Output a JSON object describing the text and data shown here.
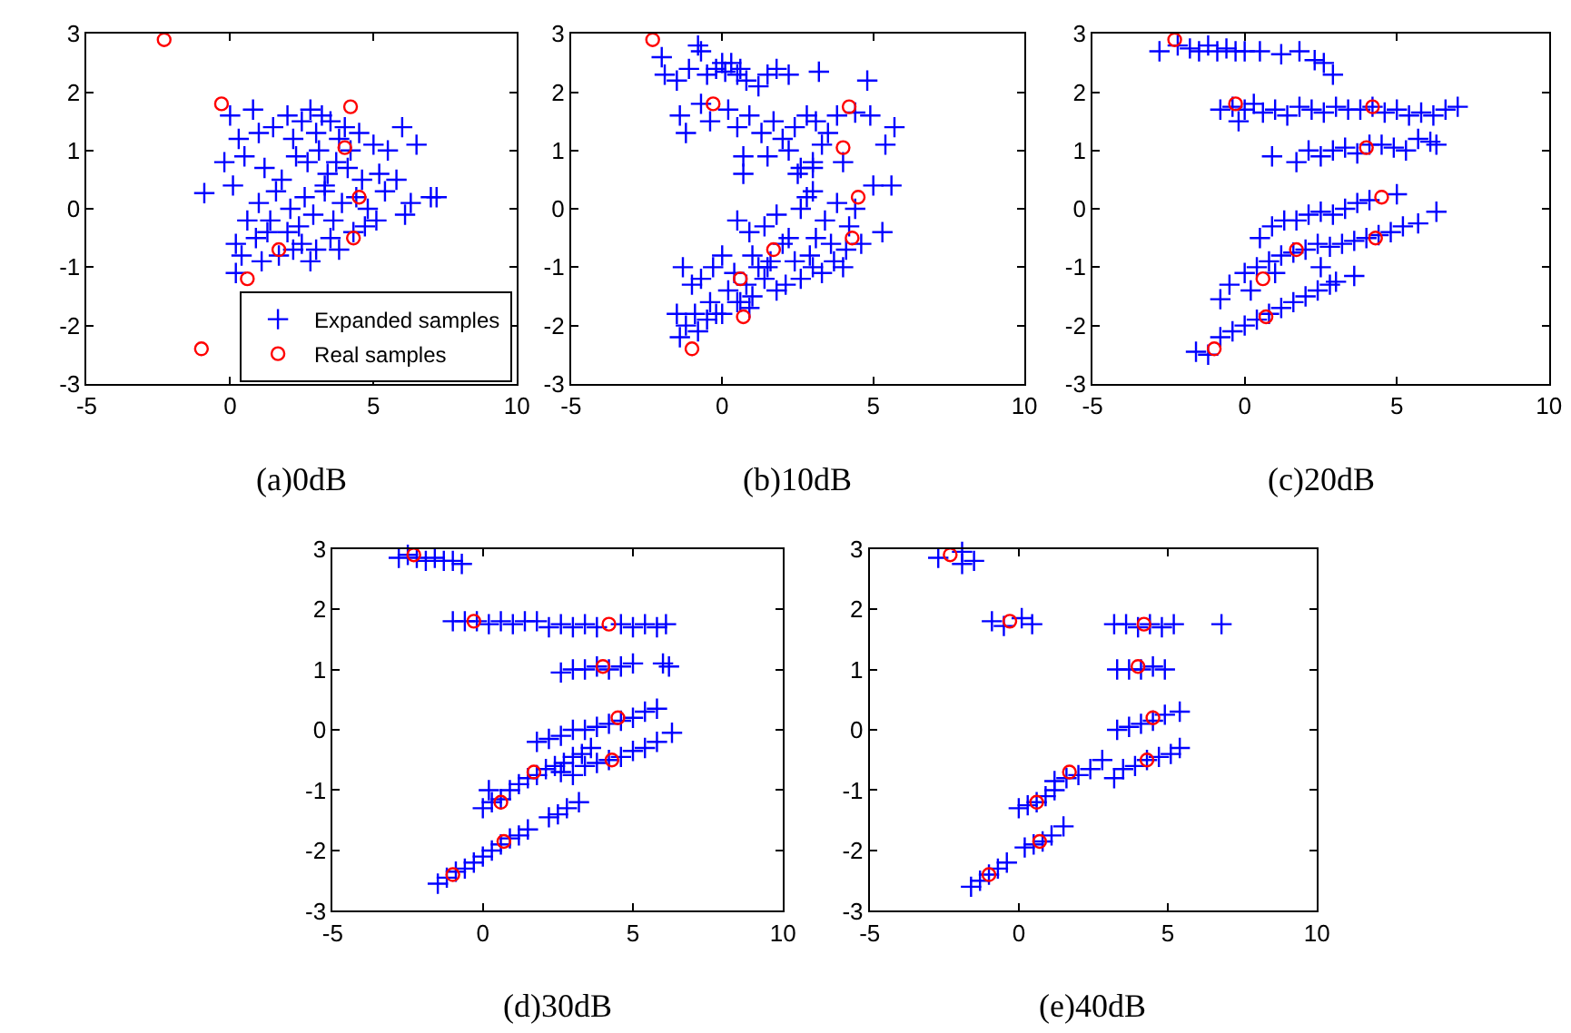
{
  "chart_data": [
    {
      "type": "scatter",
      "title": "(a)0dB",
      "xlim": [
        -5,
        10
      ],
      "ylim": [
        -3,
        3
      ],
      "xticks": [
        -5,
        0,
        5,
        10
      ],
      "yticks": [
        -3,
        -2,
        -1,
        0,
        1,
        2,
        3
      ],
      "legend": "bottom right",
      "series": [
        {
          "name": "Expanded samples",
          "color": "#0000ff",
          "marker": "cross",
          "x": [
            0.0,
            0.3,
            0.8,
            1.0,
            1.5,
            2.0,
            2.2,
            2.5,
            2.8,
            3.0,
            3.2,
            3.5,
            3.8,
            4.0,
            4.2,
            4.5,
            5.0,
            5.5,
            6.0,
            6.5,
            7.0,
            7.2,
            -0.9,
            -0.2,
            0.1,
            0.5,
            1.2,
            1.8,
            2.3,
            2.7,
            3.1,
            3.4,
            3.7,
            4.1,
            4.6,
            5.2,
            5.8,
            6.3,
            0.6,
            1.0,
            1.6,
            2.1,
            2.6,
            3.3,
            3.9,
            4.4,
            4.8,
            5.4,
            6.1,
            0.2,
            0.9,
            1.4,
            2.0,
            2.4,
            2.9,
            3.6,
            4.3,
            1.1,
            1.7,
            2.5,
            3.0,
            3.5,
            0.4,
            1.3,
            2.2,
            2.8,
            3.8,
            4.7,
            5.1,
            3.3,
            0.2
          ],
          "values": [
            1.6,
            1.2,
            1.7,
            1.3,
            1.4,
            1.6,
            1.2,
            1.5,
            1.7,
            1.3,
            1.6,
            1.5,
            1.2,
            1.4,
            1.0,
            1.3,
            1.1,
            1.0,
            1.4,
            1.1,
            0.2,
            0.2,
            0.27,
            0.8,
            0.4,
            0.9,
            0.7,
            0.5,
            0.9,
            0.8,
            1.0,
            0.6,
            0.8,
            0.7,
            0.5,
            0.6,
            0.5,
            0.1,
            -0.2,
            0.1,
            0.3,
            0.0,
            0.2,
            0.3,
            0.1,
            0.2,
            0.0,
            0.3,
            -0.1,
            -0.6,
            -0.5,
            -0.2,
            -0.4,
            -0.3,
            -0.1,
            -0.2,
            -0.4,
            -0.9,
            -0.8,
            -0.6,
            -0.7,
            -0.5,
            -0.8,
            -0.4,
            -0.7,
            -0.9,
            -0.7,
            -0.3,
            -0.2,
            0.4,
            -1.1
          ]
        },
        {
          "name": "Real samples",
          "color": "#ff0000",
          "marker": "circle",
          "x": [
            -2.3,
            -0.3,
            4.2,
            4.0,
            4.5,
            4.3,
            1.7,
            0.6,
            -1.0
          ],
          "values": [
            2.9,
            1.8,
            1.75,
            1.05,
            0.2,
            -0.5,
            -0.7,
            -1.2,
            -2.4
          ]
        }
      ]
    },
    {
      "type": "scatter",
      "title": "(b)10dB",
      "xlim": [
        -5,
        10
      ],
      "ylim": [
        -3,
        3
      ],
      "xticks": [
        -5,
        0,
        5,
        10
      ],
      "yticks": [
        -3,
        -2,
        -1,
        0,
        1,
        2,
        3
      ],
      "series": [
        {
          "color": "#0000ff",
          "marker": "cross",
          "x": [
            -2.0,
            -1.9,
            -1.5,
            -1.1,
            -0.8,
            -0.5,
            -0.2,
            0.0,
            0.3,
            0.5,
            0.8,
            1.2,
            1.5,
            1.8,
            2.2,
            3.2,
            4.8,
            -0.7,
            0.1,
            0.6,
            -1.4,
            -1.2,
            -0.7,
            0.2,
            0.5,
            0.9,
            1.3,
            1.7,
            2.0,
            2.4,
            2.8,
            3.1,
            3.5,
            3.8,
            4.4,
            4.9,
            5.4,
            5.7,
            0.7,
            1.5,
            2.2,
            2.6,
            3.0,
            3.3,
            4.0,
            -0.4,
            0.7,
            2.5,
            3.0,
            0.5,
            0.9,
            1.4,
            1.8,
            2.2,
            2.6,
            3.0,
            3.4,
            3.8,
            4.2,
            4.6,
            5.0,
            5.3,
            5.6,
            2.8,
            3.1,
            3.6,
            4.1,
            4.4,
            1.0,
            1.5,
            2.0,
            2.4,
            2.9,
            3.3,
            3.7,
            4.0,
            0.0,
            0.4,
            0.8,
            1.2,
            1.6,
            2.1,
            2.6,
            3.0,
            -0.3,
            0.2,
            0.6,
            1.0,
            1.4,
            1.8,
            -1.3,
            -1.0,
            -0.7,
            -0.4,
            0.0,
            0.5,
            0.9,
            -1.5,
            -1.2,
            -0.9,
            -0.5,
            -0.2,
            -1.4,
            -0.8
          ],
          "values": [
            2.6,
            2.3,
            2.2,
            2.4,
            2.8,
            2.3,
            2.4,
            2.5,
            2.5,
            2.3,
            2.2,
            2.1,
            2.3,
            2.4,
            2.3,
            2.35,
            2.2,
            2.7,
            2.35,
            2.4,
            1.6,
            1.3,
            1.8,
            1.7,
            1.4,
            1.6,
            1.3,
            1.5,
            1.2,
            1.4,
            1.6,
            1.5,
            1.3,
            1.6,
            1.65,
            1.6,
            1.1,
            1.4,
            0.9,
            0.9,
            1.0,
            0.7,
            0.8,
            1.1,
            0.8,
            1.5,
            0.6,
            0.6,
            0.7,
            -0.2,
            -0.4,
            -0.3,
            -0.1,
            -0.5,
            0.0,
            0.3,
            -0.2,
            0.1,
            -0.3,
            -0.6,
            0.4,
            -0.4,
            0.4,
            0.2,
            -0.5,
            -0.6,
            -0.7,
            0.0,
            -0.8,
            -1.0,
            -0.6,
            -0.9,
            -0.8,
            -1.1,
            -0.9,
            -1.0,
            -0.8,
            -1.1,
            -1.3,
            -1.0,
            -0.9,
            -1.3,
            -1.2,
            -1.0,
            -1.0,
            -1.4,
            -1.6,
            -1.5,
            -1.2,
            -1.4,
            -1.0,
            -1.3,
            -1.2,
            -1.6,
            -1.8,
            -1.6,
            -1.7,
            -1.8,
            -2.0,
            -1.8,
            -1.9,
            -1.8,
            -2.2,
            -2.1
          ]
        },
        {
          "color": "#ff0000",
          "marker": "circle",
          "x": [
            -2.3,
            -0.3,
            4.2,
            4.0,
            4.5,
            4.3,
            1.7,
            0.6,
            0.7,
            -1.0
          ],
          "values": [
            2.9,
            1.8,
            1.75,
            1.05,
            0.2,
            -0.5,
            -0.7,
            -1.2,
            -1.85,
            -2.4
          ]
        }
      ]
    },
    {
      "type": "scatter",
      "title": "(c)20dB",
      "xlim": [
        -5,
        10
      ],
      "ylim": [
        -3,
        3
      ],
      "xticks": [
        -5,
        0,
        5,
        10
      ],
      "yticks": [
        -3,
        -2,
        -1,
        0,
        1,
        2,
        3
      ],
      "series": [
        {
          "color": "#0000ff",
          "marker": "cross",
          "x": [
            -2.8,
            -2.2,
            -1.8,
            -1.5,
            -1.2,
            -0.9,
            -0.6,
            -0.3,
            0.0,
            0.5,
            1.2,
            1.8,
            2.3,
            2.6,
            2.9,
            -0.8,
            -0.4,
            0.0,
            0.3,
            0.6,
            1.0,
            1.4,
            1.8,
            2.2,
            2.6,
            3.0,
            3.4,
            3.8,
            4.2,
            4.6,
            5.0,
            5.4,
            5.8,
            6.2,
            6.6,
            7.0,
            -0.2,
            0.9,
            1.7,
            2.1,
            2.5,
            2.9,
            3.3,
            3.7,
            4.1,
            4.5,
            4.9,
            5.3,
            5.7,
            6.1,
            6.3,
            0.5,
            0.9,
            1.3,
            1.7,
            2.1,
            2.5,
            2.9,
            3.3,
            3.7,
            4.1,
            5.0,
            6.3,
            -0.5,
            0.0,
            0.4,
            0.8,
            1.2,
            1.6,
            2.0,
            2.4,
            2.8,
            3.2,
            3.6,
            4.0,
            4.4,
            4.8,
            5.2,
            5.7,
            -0.8,
            0.2,
            1.0,
            2.5,
            3.6,
            -1.6,
            -1.2,
            -0.8,
            -0.4,
            0.0,
            0.4,
            0.8,
            1.2,
            1.6,
            2.0,
            2.4,
            2.8,
            3.0
          ],
          "values": [
            2.7,
            2.8,
            2.75,
            2.7,
            2.8,
            2.7,
            2.75,
            2.7,
            2.7,
            2.7,
            2.65,
            2.7,
            2.55,
            2.5,
            2.3,
            1.7,
            1.75,
            1.7,
            1.8,
            1.65,
            1.7,
            1.6,
            1.75,
            1.7,
            1.65,
            1.75,
            1.7,
            1.7,
            1.75,
            1.65,
            1.7,
            1.6,
            1.65,
            1.6,
            1.7,
            1.75,
            1.5,
            0.9,
            0.8,
            1.0,
            0.9,
            1.0,
            1.05,
            0.95,
            1.1,
            1.1,
            1.05,
            1.0,
            1.2,
            1.15,
            1.1,
            -0.5,
            -0.3,
            -0.2,
            -0.2,
            -0.1,
            -0.05,
            -0.1,
            0.0,
            0.1,
            0.15,
            0.25,
            -0.05,
            -1.3,
            -1.1,
            -1.0,
            -0.9,
            -0.8,
            -0.75,
            -0.7,
            -0.6,
            -0.65,
            -0.6,
            -0.55,
            -0.5,
            -0.45,
            -0.4,
            -0.3,
            -0.25,
            -1.55,
            -1.4,
            -1.1,
            -1.0,
            -1.15,
            -2.45,
            -2.5,
            -2.2,
            -2.1,
            -2.0,
            -1.9,
            -1.8,
            -1.7,
            -1.6,
            -1.5,
            -1.4,
            -1.3,
            -1.25
          ]
        },
        {
          "color": "#ff0000",
          "marker": "circle",
          "x": [
            -2.3,
            -0.3,
            4.2,
            4.0,
            4.5,
            4.3,
            1.7,
            0.6,
            0.7,
            -1.0
          ],
          "values": [
            2.9,
            1.8,
            1.75,
            1.05,
            0.2,
            -0.5,
            -0.7,
            -1.2,
            -1.85,
            -2.4
          ]
        }
      ]
    },
    {
      "type": "scatter",
      "title": "(d)30dB",
      "xlim": [
        -5,
        10
      ],
      "ylim": [
        -3,
        3
      ],
      "xticks": [
        -5,
        0,
        5,
        10
      ],
      "yticks": [
        -3,
        -2,
        -1,
        0,
        1,
        2,
        3
      ],
      "series": [
        {
          "color": "#0000ff",
          "marker": "cross",
          "x": [
            -2.8,
            -2.5,
            -2.2,
            -1.9,
            -1.6,
            -1.3,
            -1.0,
            -0.7,
            -1.0,
            -0.6,
            -0.2,
            0.2,
            0.6,
            1.0,
            1.4,
            1.8,
            2.2,
            2.6,
            3.0,
            3.4,
            3.8,
            4.6,
            5.0,
            5.4,
            5.8,
            6.1,
            2.6,
            3.0,
            3.4,
            3.8,
            4.2,
            4.6,
            5.0,
            6.0,
            6.2,
            1.8,
            2.2,
            2.6,
            3.0,
            3.4,
            3.8,
            4.2,
            4.6,
            5.0,
            5.4,
            5.8,
            2.6,
            3.0,
            3.4,
            3.8,
            4.2,
            4.6,
            5.0,
            5.4,
            5.8,
            6.3,
            0.0,
            0.3,
            0.6,
            0.9,
            1.2,
            1.5,
            1.8,
            2.1,
            2.4,
            2.7,
            3.0,
            3.3,
            3.6,
            0.2,
            -1.5,
            -1.2,
            -0.9,
            -0.6,
            -0.3,
            0.0,
            0.3,
            0.6,
            0.9,
            1.2,
            1.5,
            2.2,
            2.5,
            2.8,
            3.2
          ],
          "values": [
            2.85,
            2.9,
            2.85,
            2.8,
            2.85,
            2.8,
            2.8,
            2.75,
            1.8,
            1.8,
            1.8,
            1.75,
            1.8,
            1.75,
            1.8,
            1.8,
            1.7,
            1.75,
            1.7,
            1.75,
            1.7,
            1.75,
            1.7,
            1.75,
            1.7,
            1.75,
            0.95,
            1.0,
            1.0,
            1.05,
            1.0,
            1.05,
            1.1,
            1.1,
            1.05,
            -0.2,
            -0.15,
            -0.1,
            0.0,
            0.0,
            0.05,
            0.1,
            0.15,
            0.2,
            0.3,
            0.35,
            -0.7,
            -0.75,
            -0.6,
            -0.55,
            -0.5,
            -0.45,
            -0.35,
            -0.3,
            -0.2,
            -0.05,
            -1.3,
            -1.2,
            -1.15,
            -1.0,
            -0.9,
            -0.8,
            -0.75,
            -0.65,
            -0.6,
            -0.55,
            -0.45,
            -0.4,
            -0.3,
            -1.0,
            -2.55,
            -2.45,
            -2.35,
            -2.3,
            -2.2,
            -2.1,
            -2.0,
            -1.9,
            -1.8,
            -1.75,
            -1.65,
            -1.45,
            -1.4,
            -1.3,
            -1.2
          ]
        },
        {
          "color": "#ff0000",
          "marker": "circle",
          "x": [
            -2.3,
            -0.3,
            4.2,
            4.0,
            4.5,
            4.3,
            1.7,
            0.6,
            0.7,
            -1.0
          ],
          "values": [
            2.9,
            1.8,
            1.75,
            1.05,
            0.2,
            -0.5,
            -0.7,
            -1.2,
            -1.85,
            -2.4
          ]
        }
      ]
    },
    {
      "type": "scatter",
      "title": "(e)40dB",
      "xlim": [
        -5,
        10
      ],
      "ylim": [
        -3,
        3
      ],
      "xticks": [
        -5,
        0,
        5,
        10
      ],
      "yticks": [
        -3,
        -2,
        -1,
        0,
        1,
        2,
        3
      ],
      "series": [
        {
          "color": "#0000ff",
          "marker": "cross",
          "x": [
            -2.7,
            -1.9,
            -1.5,
            -1.9,
            -0.9,
            0.1,
            0.45,
            -0.5,
            3.2,
            3.6,
            4.0,
            4.4,
            4.8,
            5.2,
            6.8,
            3.3,
            3.7,
            4.1,
            4.5,
            4.9,
            3.3,
            3.7,
            4.1,
            4.5,
            4.9,
            5.4,
            3.5,
            3.9,
            4.3,
            4.7,
            5.1,
            5.4,
            1.2,
            1.6,
            2.0,
            2.4,
            2.8,
            3.2,
            0.0,
            0.3,
            0.6,
            0.9,
            1.2,
            0.2,
            0.5,
            0.8,
            1.1,
            1.5,
            -1.6,
            -1.3,
            -1.0,
            -0.7,
            -0.4
          ],
          "values": [
            2.85,
            2.95,
            2.8,
            2.75,
            1.8,
            1.85,
            1.75,
            1.72,
            1.75,
            1.75,
            1.7,
            1.75,
            1.7,
            1.75,
            1.75,
            1.0,
            1.0,
            1.0,
            1.05,
            1.0,
            0.0,
            0.05,
            0.1,
            0.15,
            0.25,
            0.3,
            -0.65,
            -0.6,
            -0.5,
            -0.45,
            -0.4,
            -0.3,
            -0.85,
            -0.8,
            -0.75,
            -0.65,
            -0.5,
            -0.8,
            -1.3,
            -1.25,
            -1.2,
            -1.1,
            -1.0,
            -1.95,
            -1.9,
            -1.85,
            -1.75,
            -1.6,
            -2.6,
            -2.5,
            -2.4,
            -2.3,
            -2.2
          ]
        },
        {
          "color": "#ff0000",
          "marker": "circle",
          "x": [
            -2.3,
            -0.3,
            4.2,
            4.0,
            4.5,
            4.3,
            1.7,
            0.6,
            0.7,
            -1.0
          ],
          "values": [
            2.9,
            1.8,
            1.75,
            1.05,
            0.2,
            -0.5,
            -0.7,
            -1.2,
            -1.85,
            -2.4
          ]
        }
      ]
    }
  ]
}
